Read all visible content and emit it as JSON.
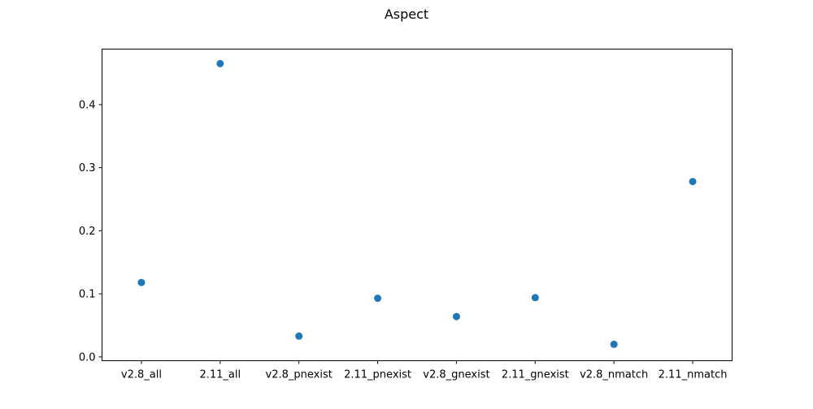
{
  "chart_data": {
    "type": "scatter",
    "title": "Aspect",
    "xlabel": "",
    "ylabel": "",
    "categories": [
      "v2.8_all",
      "2.11_all",
      "v2.8_pnexist",
      "2.11_pnexist",
      "v2.8_gnexist",
      "2.11_gnexist",
      "v2.8_nmatch",
      "2.11_nmatch"
    ],
    "values": [
      0.118,
      0.465,
      0.033,
      0.093,
      0.064,
      0.094,
      0.02,
      0.278
    ],
    "yticks": [
      0.0,
      0.1,
      0.2,
      0.3,
      0.4
    ],
    "ytick_labels": [
      "0.0",
      "0.1",
      "0.2",
      "0.3",
      "0.4"
    ],
    "ylim": [
      -0.006,
      0.488
    ],
    "grid": false,
    "marker_color": "#1f77b4"
  }
}
